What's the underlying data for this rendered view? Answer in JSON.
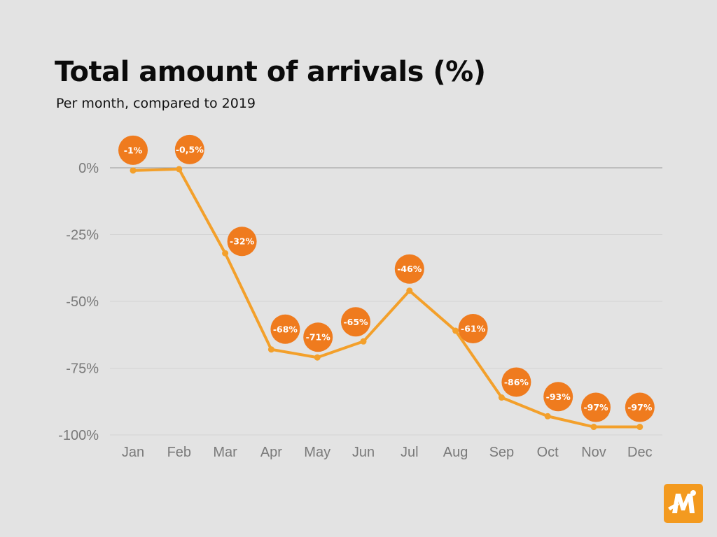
{
  "header": {
    "title": "Total amount of arrivals (%)",
    "subtitle": "Per month, compared to 2019"
  },
  "colors": {
    "background": "#e3e3e3",
    "line": "#f3a02b",
    "bubble": "#ef7b1e",
    "grid": "#d3d3d3",
    "zero_line": "#9a9a9a",
    "tick_text": "#7a7a7a",
    "logo_bg": "#f39a1f"
  },
  "logo": {
    "icon": "brand-logo-icon"
  },
  "chart_data": {
    "type": "line",
    "categories": [
      "Jan",
      "Feb",
      "Mar",
      "Apr",
      "May",
      "Jun",
      "Jul",
      "Aug",
      "Sep",
      "Oct",
      "Nov",
      "Dec"
    ],
    "values": [
      -1,
      -0.5,
      -32,
      -68,
      -71,
      -65,
      -46,
      -61,
      -86,
      -93,
      -97,
      -97
    ],
    "data_labels": [
      "-1%",
      "-0,5%",
      "-32%",
      "-68%",
      "-71%",
      "-65%",
      "-46%",
      "-61%",
      "-86%",
      "-93%",
      "-97%",
      "-97%"
    ],
    "ylim": [
      -100,
      0
    ],
    "yticks": [
      0,
      -25,
      -50,
      -75,
      -100
    ],
    "ytick_labels": [
      "0%",
      "-25%",
      "-50%",
      "-75%",
      "-100%"
    ],
    "grid": true,
    "legend": "none"
  }
}
